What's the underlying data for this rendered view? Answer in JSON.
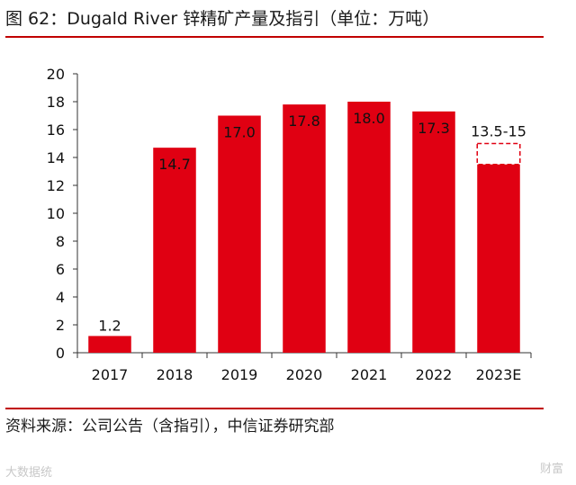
{
  "title": "图 62：Dugald River 锌精矿产量及指引（单位：万吨）",
  "source": "资料来源：公司公告（含指引），中信证券研究部",
  "watermarks": {
    "left": "大数据统",
    "right": "财富"
  },
  "colors": {
    "accent": "#c00000",
    "bar": "#e00012"
  },
  "chart_data": {
    "type": "bar",
    "title": "Dugald River 锌精矿产量及指引（单位：万吨）",
    "categories": [
      "2017",
      "2018",
      "2019",
      "2020",
      "2021",
      "2022",
      "2023E"
    ],
    "values": [
      1.2,
      14.7,
      17.0,
      17.8,
      18.0,
      17.3,
      13.5
    ],
    "labels": [
      "1.2",
      "14.7",
      "17.0",
      "17.8",
      "18.0",
      "17.3",
      "13.5-15"
    ],
    "guidance_range": {
      "category": "2023E",
      "low": 13.5,
      "high": 15
    },
    "yticks": [
      "0",
      "2",
      "4",
      "6",
      "8",
      "10",
      "12",
      "14",
      "16",
      "18",
      "20"
    ],
    "ylim": [
      0,
      20
    ],
    "xlabel": "",
    "ylabel": "",
    "grid": false,
    "legend": "none"
  }
}
